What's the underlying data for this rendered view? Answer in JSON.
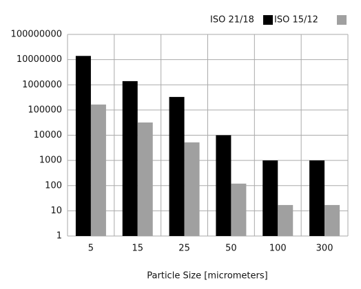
{
  "chart_data": {
    "type": "bar",
    "x_label": "Particle Size [micrometers]",
    "categories": [
      "5",
      "15",
      "25",
      "50",
      "100",
      "300"
    ],
    "series": [
      {
        "name": "ISO 21/18",
        "color": "#000000",
        "values": [
          14000000,
          1400000,
          330000,
          10000,
          1000,
          1000
        ]
      },
      {
        "name": "ISO 15/12",
        "color": "#a0a0a0",
        "values": [
          165000,
          32000,
          5200,
          120,
          17,
          17
        ]
      }
    ],
    "ylim": [
      1,
      100000000
    ],
    "yticks": [
      1,
      10,
      100,
      1000,
      10000,
      100000,
      1000000,
      10000000,
      100000000
    ],
    "log_scale": true,
    "grid": true,
    "legend": "top-right"
  }
}
